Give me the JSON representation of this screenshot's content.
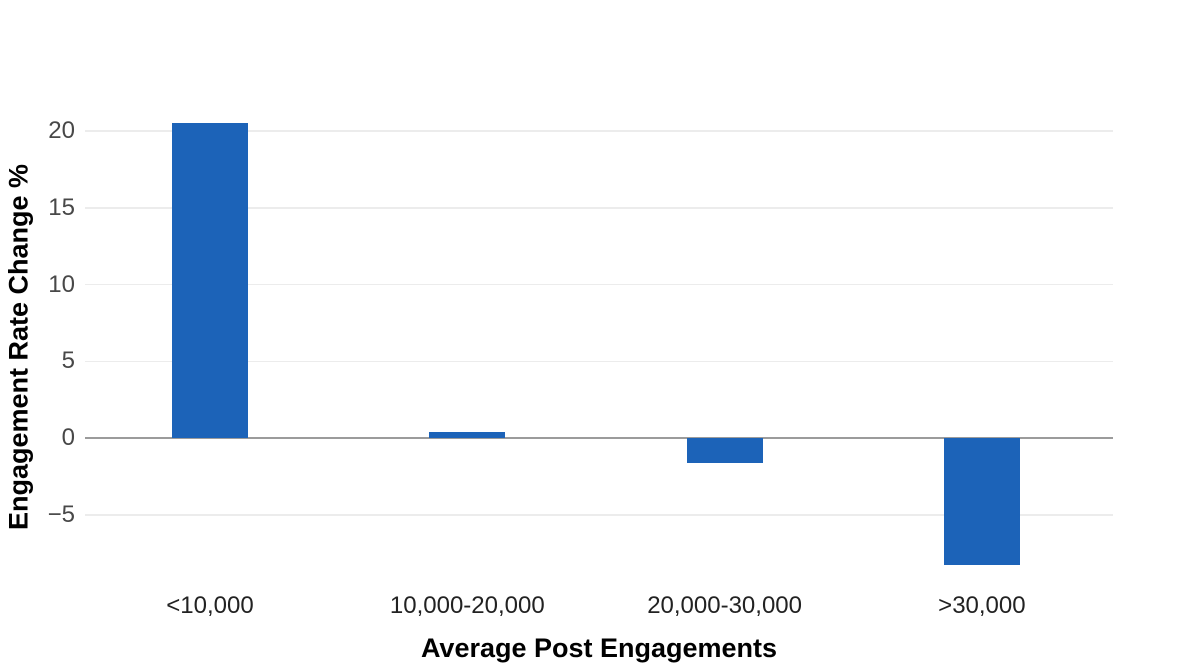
{
  "chart_data": {
    "type": "bar",
    "title": "",
    "categories": [
      "<10,000",
      "10,000-20,000",
      "20,000-30,000",
      ">30,000"
    ],
    "values": [
      20.5,
      0.4,
      -1.6,
      -8.3
    ],
    "xlabel": "Average Post Engagements",
    "ylabel": "Engagement Rate Change %",
    "yticks": [
      20,
      15,
      10,
      5,
      0,
      -5
    ],
    "ytick_labels": [
      "20",
      "15",
      "10",
      "5",
      "0",
      "−5"
    ],
    "ylim": [
      -9.8,
      22
    ],
    "grid": true,
    "legend": false,
    "bar_color": "#1c63b8",
    "zero_line_color": "#9b9b9b",
    "gridline_color": "#ececec",
    "ytick_color": "#484848",
    "xtick_color": "#222222",
    "background": "#ffffff"
  }
}
